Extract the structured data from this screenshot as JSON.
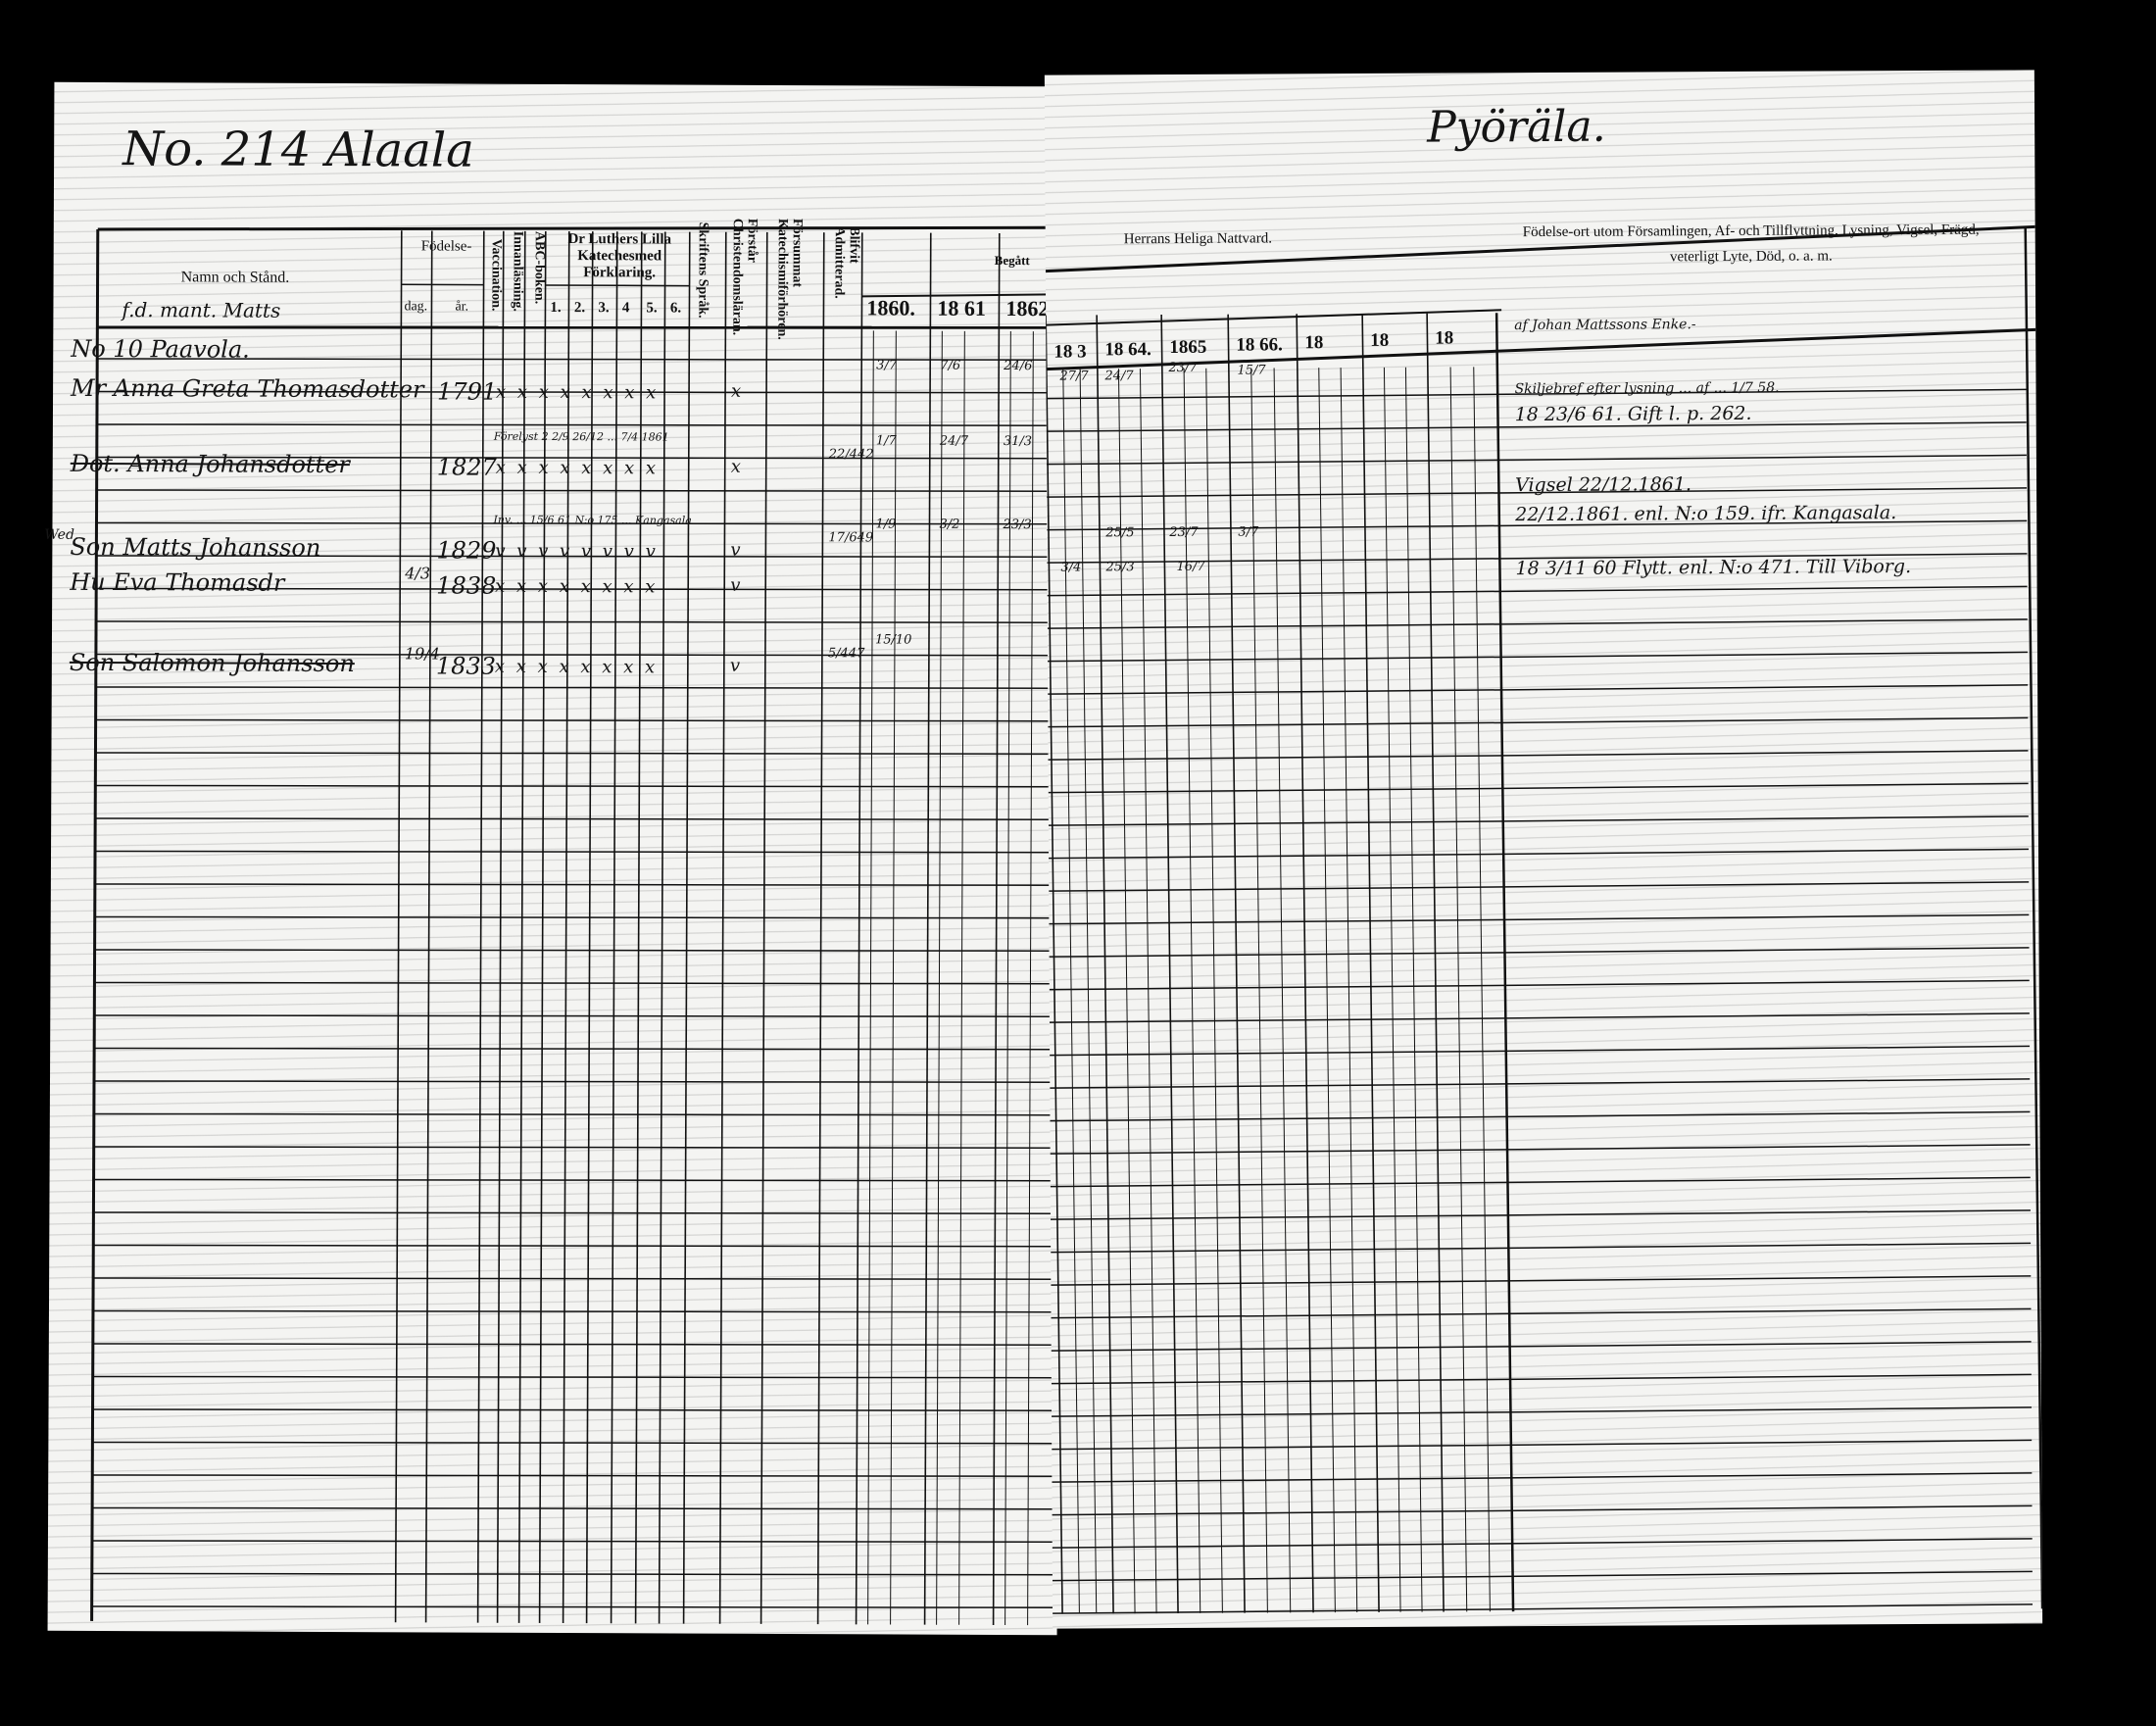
{
  "left_page": {
    "heading": "No. 214 Alaala",
    "columns": {
      "name": "Namn och Stånd.",
      "name_sub": "f.d. mant. Matts",
      "birth": "Födelse-",
      "birth_day": "dag.",
      "birth_year": "år.",
      "vaccination": "Vaccination.",
      "reading": "Innanläsning.",
      "abc": "ABC-boken.",
      "catechism": "Dr Luthers Lilla Katechesmed Förklaring.",
      "catechism_parts": [
        "1.",
        "2.",
        "3.",
        "4",
        "5.",
        "6."
      ],
      "scripture": "Skriftens Språk.",
      "christendom": "Förstår Christendomsläran.",
      "missed": "Försummat Katechismiförhören.",
      "admitted": "Blifvit Admitterad.",
      "begatt": "Begått",
      "years": [
        "1860.",
        "18 61",
        "1862"
      ]
    },
    "rows": [
      {
        "name": "No 10 Paavola.",
        "day": "",
        "year": "",
        "marks": ""
      },
      {
        "name": "Mr Anna Greta Thomasdotter",
        "day": "",
        "year": "1791",
        "marks": "x x x x x x x x",
        "check": "x",
        "comm": [
          "3/7",
          "7/6",
          "24/6"
        ]
      },
      {
        "name": "Dot. Anna Johansdotter",
        "day": "",
        "year": "1827",
        "note": "Förelyst 2 2/9 26/12 ... 7/4 1861",
        "marks": "x x x x x x x x",
        "check": "x",
        "admit": "22/442",
        "comm": [
          "1/7",
          "24/7",
          "31/3"
        ]
      },
      {
        "name": "Son Matts Johansson",
        "prefix": "Wed.",
        "day": "",
        "year": "1829",
        "note": "Inv. ... 15/6 61 N:o 175 ... Kangasala",
        "marks": "v v v v v v v v",
        "check": "v",
        "admit": "17/649",
        "comm": [
          "1/9",
          "3/2",
          "23/3"
        ]
      },
      {
        "name": "Hu Eva Thomasdr",
        "day": "4/3",
        "year": "1838",
        "marks": "x x x x x x x x",
        "check": "v"
      },
      {
        "name": "Son Salomon Johansson",
        "day": "19/4",
        "year": "1833",
        "marks": "x x x x x x x x",
        "check": "v",
        "admit": "5/447",
        "comm": [
          "15/10"
        ]
      }
    ]
  },
  "right_page": {
    "heading": "Pyöräla.",
    "communion_title": "Herrans Heliga Nattvard.",
    "years": [
      "18 3",
      "18 64.",
      "1865",
      "18 66.",
      "18",
      "18",
      "18"
    ],
    "remarks_title": "Födelse-ort utom Församlingen, Af- och Tillflyttning, Lysning, Vigsel, Frägd, veterligt Lyte, Död, o. a. m.",
    "remarks": [
      "af Johan Mattssons Enke.-",
      "Skiljebref efter lysning ... af ... 1/7 58.",
      "18 23/6 61. Gift l. p. 262.",
      "Vigsel 22/12.1861.",
      "22/12.1861. enl. N:o 159. ifr. Kangasala.",
      "18 3/11 60 Flytt. enl. N:o 471. Till Viborg."
    ],
    "comm_marks": [
      "27/7",
      "24/7",
      "23/7",
      "15/7",
      "25/5",
      "23/7",
      "16/7",
      "3/7",
      "25/3",
      "3/4"
    ]
  }
}
